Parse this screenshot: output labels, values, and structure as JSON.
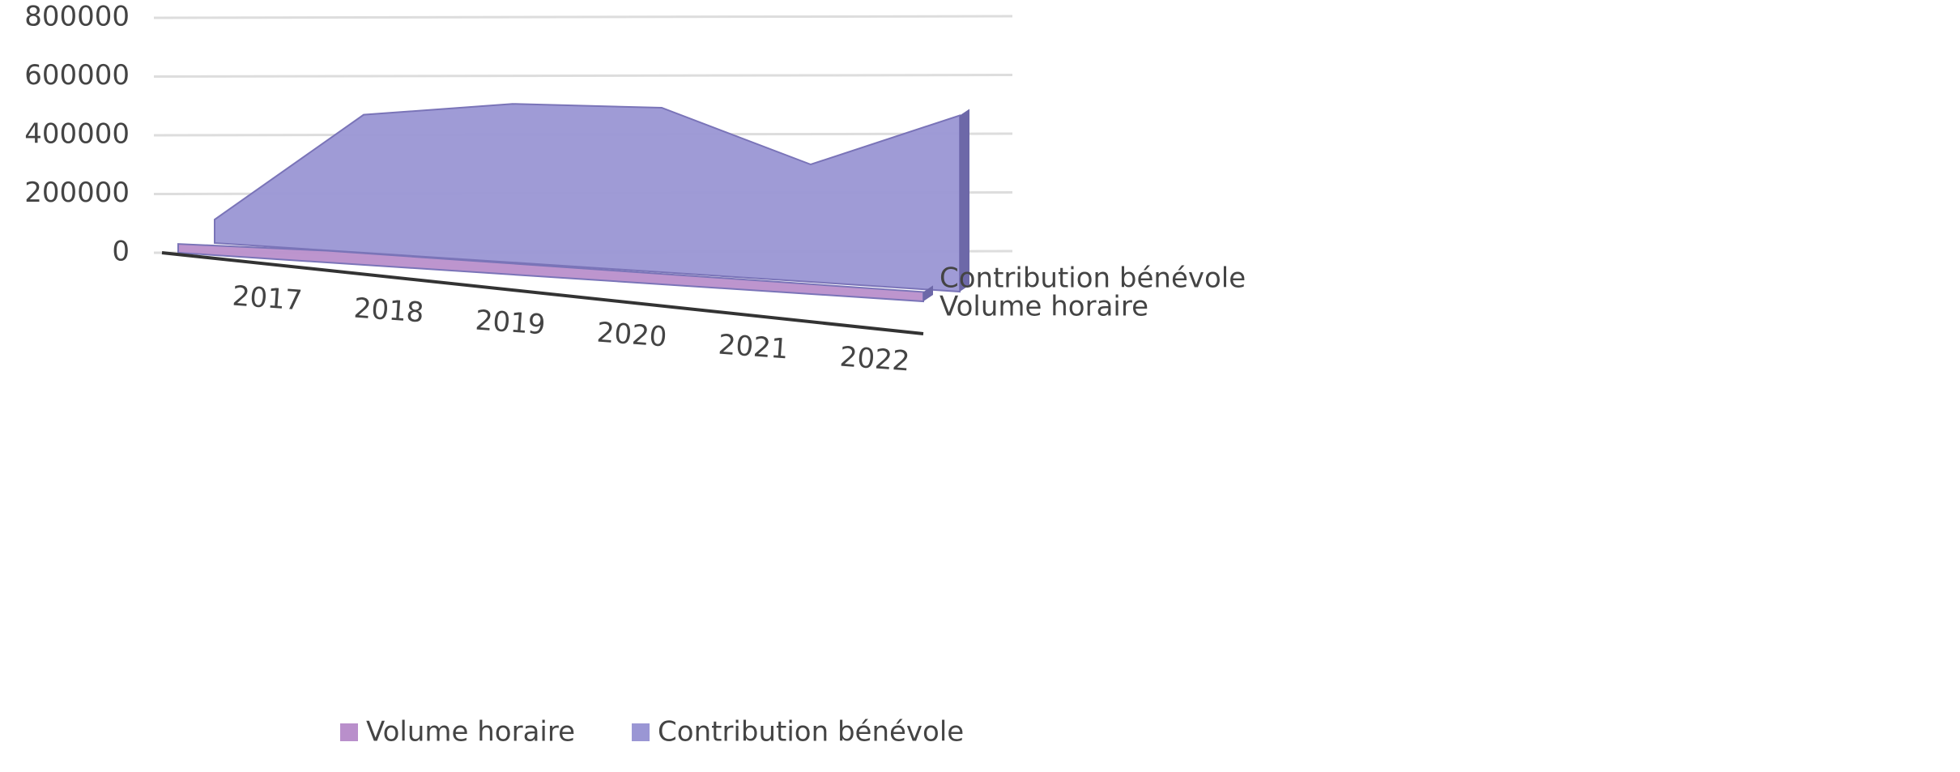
{
  "chart_data": {
    "type": "area3d",
    "categories": [
      "2017",
      "2018",
      "2019",
      "2020",
      "2021",
      "2022"
    ],
    "series": [
      {
        "name": "Volume horaire",
        "color": "#b98fcb",
        "values": [
          30000,
          40000,
          38000,
          36000,
          34000,
          32000
        ]
      },
      {
        "name": "Contribution bénévole",
        "color": "#9a96d4",
        "values": [
          80000,
          470000,
          540000,
          560000,
          400000,
          600000
        ]
      }
    ],
    "ylim": [
      0,
      800000
    ],
    "yticks": [
      0,
      200000,
      400000,
      600000,
      800000
    ],
    "grid": true,
    "legend": "bottom"
  }
}
